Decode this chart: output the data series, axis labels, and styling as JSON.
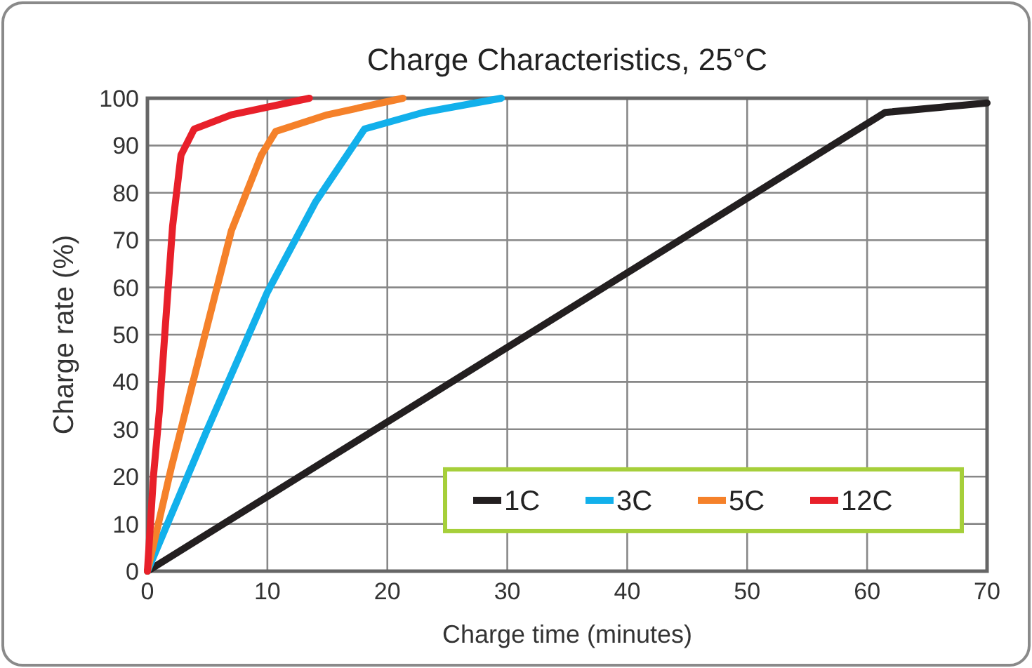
{
  "chart_data": {
    "type": "line",
    "title": "Charge Characteristics, 25°C",
    "xlabel": "Charge time (minutes)",
    "ylabel": "Charge rate (%)",
    "xlim": [
      0,
      70
    ],
    "xticks": [
      0,
      10,
      20,
      30,
      40,
      50,
      60,
      70
    ],
    "ylim": [
      0,
      100
    ],
    "yticks": [
      0,
      10,
      20,
      30,
      40,
      50,
      60,
      70,
      80,
      90,
      100
    ],
    "grid": true,
    "legend": "bottom right",
    "marker": "none",
    "line_style": "solid",
    "series": [
      {
        "name": "1C",
        "color": "#231f20",
        "x": [
          0,
          61.5,
          70
        ],
        "values": [
          0,
          97,
          99
        ]
      },
      {
        "name": "3C",
        "color": "#12b0eb",
        "x": [
          0,
          5,
          10,
          14,
          18.1,
          23,
          29.5
        ],
        "values": [
          0,
          30,
          59,
          78,
          93.5,
          97,
          100
        ]
      },
      {
        "name": "5C",
        "color": "#f5812a",
        "x": [
          0,
          2,
          4.5,
          7,
          9.5,
          10.7,
          15,
          21.3
        ],
        "values": [
          0,
          22,
          47,
          72,
          88,
          93,
          96.5,
          100
        ]
      },
      {
        "name": "12C",
        "color": "#e8202a",
        "x": [
          0,
          0.5,
          1,
          1.5,
          2.1,
          2.8,
          3.9,
          7,
          13.5
        ],
        "values": [
          0,
          20,
          34,
          52,
          73,
          88,
          93.5,
          96.5,
          100
        ]
      }
    ]
  }
}
